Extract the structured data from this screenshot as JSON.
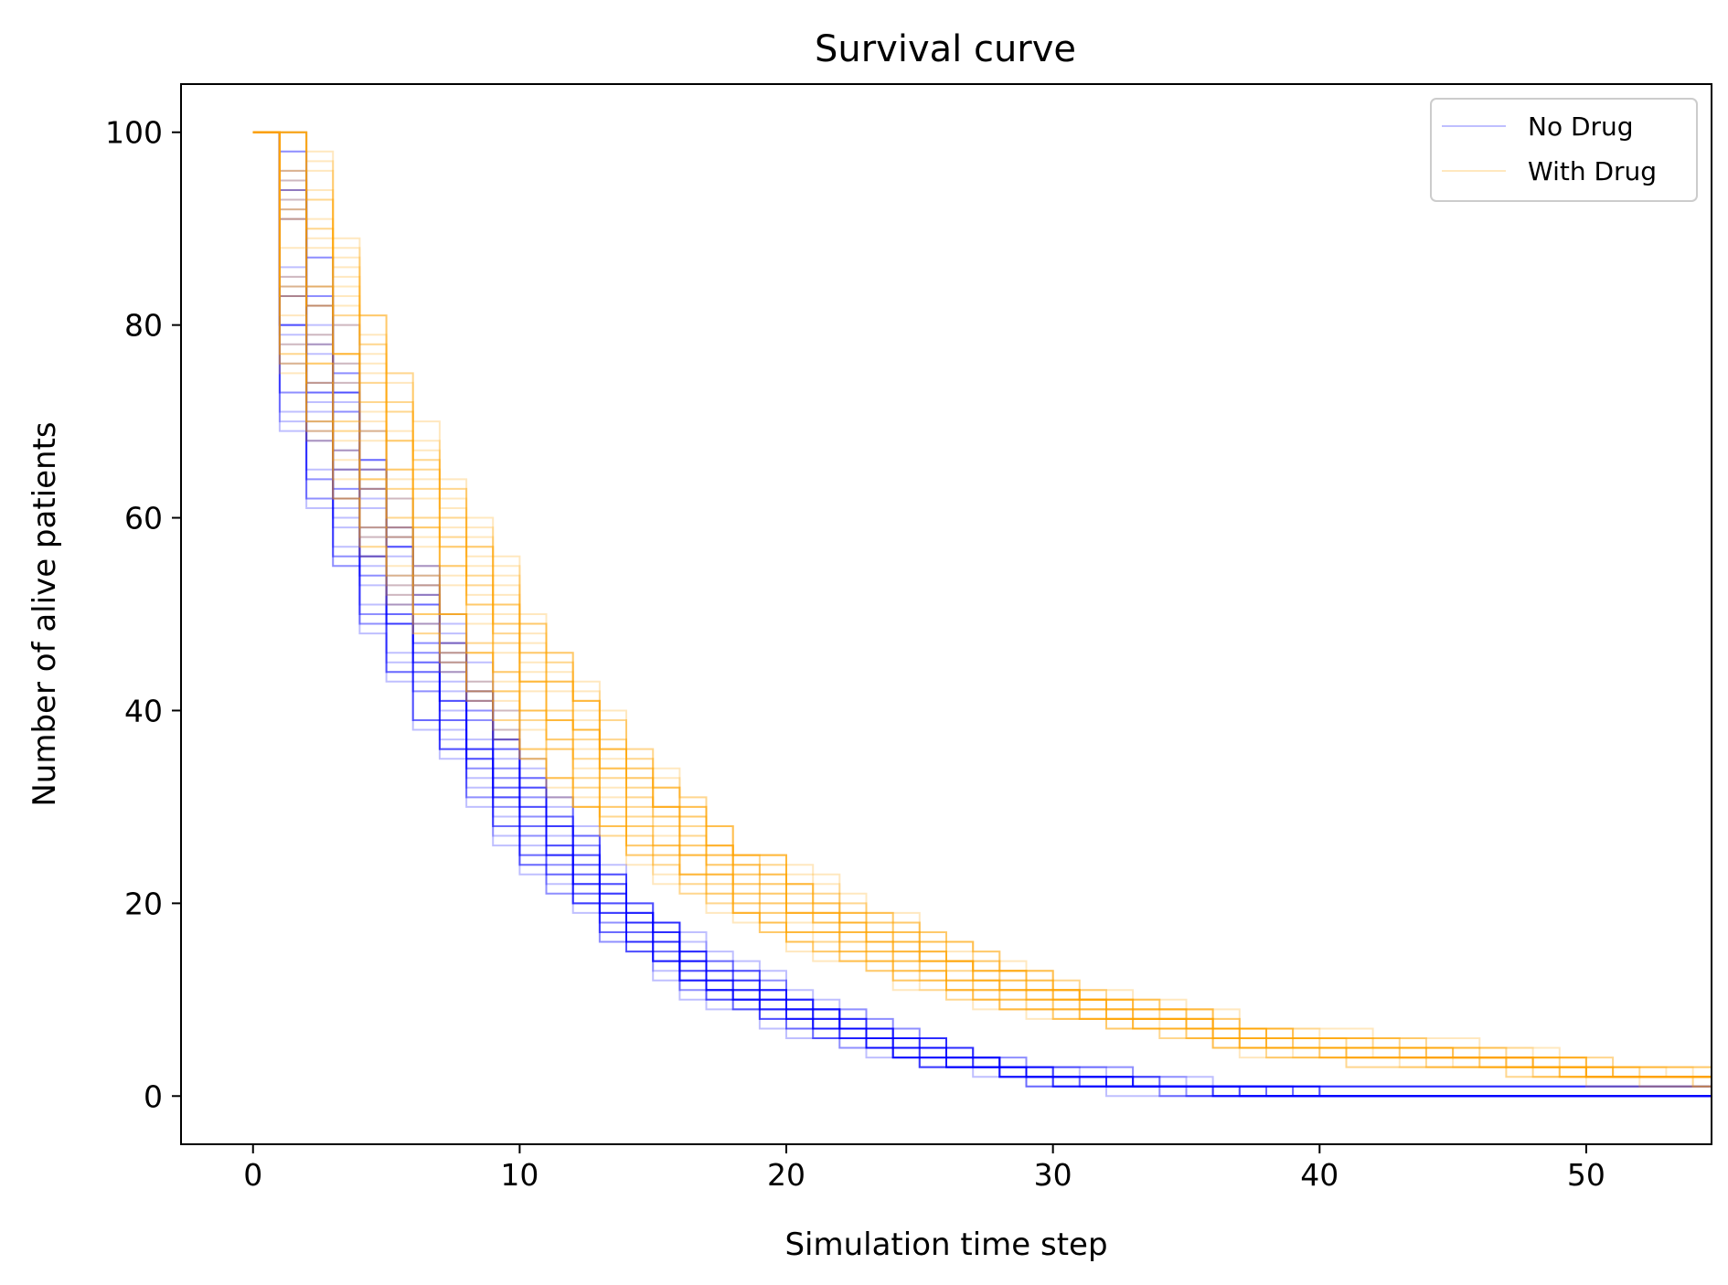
{
  "chart_data": {
    "type": "line",
    "title": "Survival curve",
    "xlabel": "Simulation time step",
    "ylabel": "Number of alive patients",
    "xlim": [
      -2.7,
      54.7
    ],
    "ylim": [
      -5,
      105
    ],
    "xticks": [
      0,
      10,
      20,
      30,
      40,
      50
    ],
    "yticks": [
      0,
      20,
      40,
      60,
      80,
      100
    ],
    "grid": false,
    "legend_position": "top-right",
    "series": [
      {
        "name": "No Drug",
        "color": "#0000ff",
        "line_style": "step-post",
        "opacity": 0.25,
        "run_count": 30,
        "approx_mean_curve": {
          "x": [
            0,
            1,
            2,
            3,
            4,
            5,
            6,
            7,
            8,
            9,
            10,
            11,
            12,
            13,
            14,
            15,
            16,
            17,
            18,
            19,
            20,
            21,
            22,
            23,
            24,
            25,
            26,
            27,
            28,
            29,
            30,
            32,
            34,
            36,
            38,
            40,
            45,
            50,
            54.7
          ],
          "y": [
            100,
            85,
            74,
            66,
            58,
            52,
            47,
            42,
            37,
            33,
            29,
            26,
            23,
            20,
            17.5,
            15.5,
            13.5,
            12,
            11,
            10,
            9,
            8,
            7,
            6,
            5.3,
            4.7,
            4,
            3.5,
            3,
            2.6,
            2.3,
            1.8,
            1.5,
            1.2,
            1,
            1,
            1,
            1,
            1
          ]
        }
      },
      {
        "name": "With Drug",
        "color": "#ffa500",
        "line_style": "step-post",
        "opacity": 0.25,
        "run_count": 30,
        "approx_mean_curve": {
          "x": [
            0,
            1,
            2,
            3,
            4,
            5,
            6,
            7,
            8,
            9,
            10,
            11,
            12,
            13,
            14,
            15,
            16,
            17,
            18,
            19,
            20,
            21,
            22,
            23,
            24,
            25,
            26,
            27,
            28,
            29,
            30,
            32,
            34,
            36,
            38,
            40,
            45,
            50,
            54.7
          ],
          "y": [
            100,
            90,
            82,
            75,
            69,
            63,
            58,
            54,
            50,
            46,
            42,
            39,
            36,
            33,
            30,
            28,
            26,
            24,
            22,
            21,
            19,
            18,
            17,
            16,
            15,
            14,
            13,
            12,
            11.5,
            11,
            10,
            9,
            8,
            7,
            6,
            5.5,
            4.5,
            3,
            2.5
          ]
        }
      }
    ]
  }
}
